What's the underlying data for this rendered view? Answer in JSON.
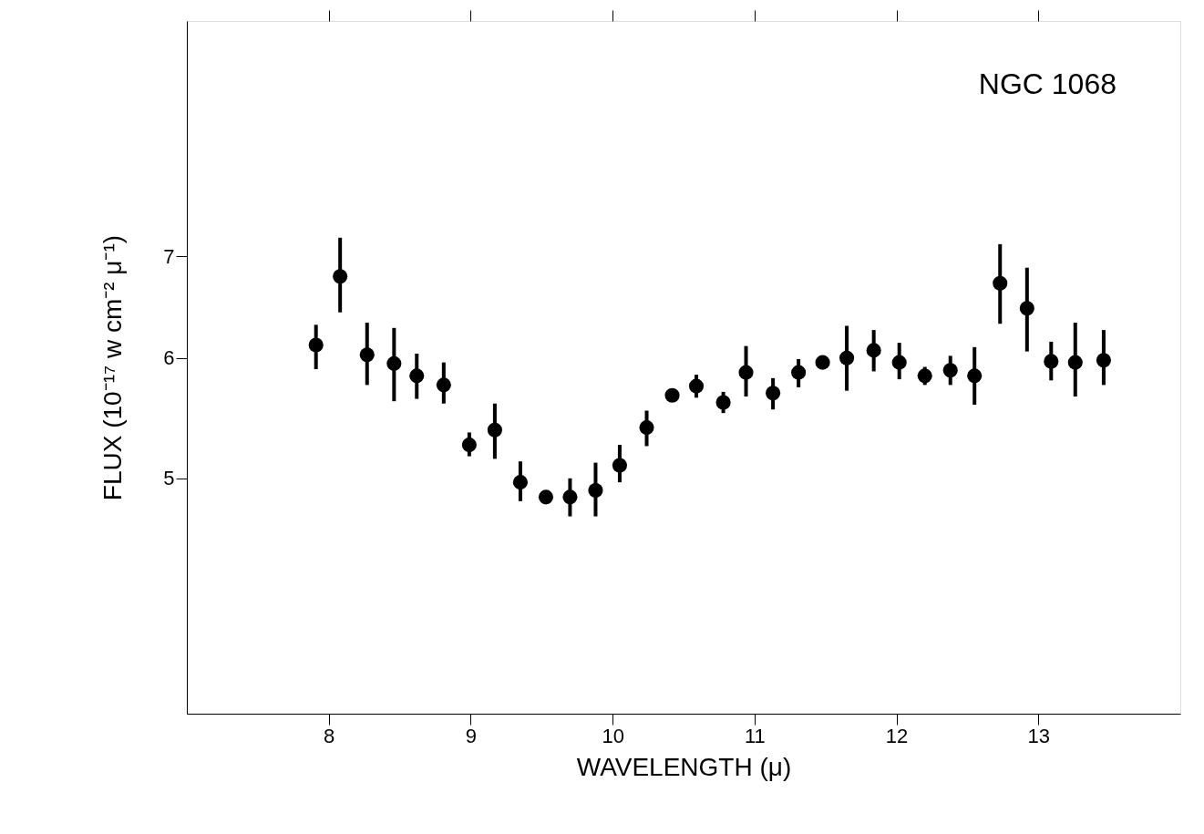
{
  "chart_data": {
    "type": "scatter",
    "xlabel": "WAVELENGTH (μ)",
    "ylabel": "FLUX (10⁻¹⁷ w cm⁻² μ⁻¹)",
    "annotations": [
      "NGC 1068"
    ],
    "x": [
      7.91,
      8.08,
      8.27,
      8.46,
      8.62,
      8.81,
      8.99,
      9.17,
      9.35,
      9.53,
      9.7,
      9.88,
      10.05,
      10.24,
      10.42,
      10.59,
      10.78,
      10.94,
      11.13,
      11.31,
      11.48,
      11.65,
      11.84,
      12.02,
      12.2,
      12.38,
      12.55,
      12.73,
      12.92,
      13.09,
      13.26,
      13.46
    ],
    "series": [
      {
        "color": "#000000",
        "values": [
          6.12,
          6.79,
          6.03,
          5.95,
          5.84,
          5.76,
          5.26,
          5.38,
          4.97,
          4.86,
          4.86,
          4.91,
          5.1,
          5.4,
          5.67,
          5.75,
          5.61,
          5.87,
          5.69,
          5.87,
          5.96,
          6.0,
          6.07,
          5.96,
          5.84,
          5.89,
          5.84,
          6.72,
          6.47,
          5.97,
          5.96,
          5.98
        ],
        "errors": [
          [
            5.9,
            6.31
          ],
          [
            6.43,
            7.2
          ],
          [
            5.76,
            6.33
          ],
          [
            5.62,
            6.28
          ],
          [
            5.64,
            6.04
          ],
          [
            5.6,
            5.96
          ],
          [
            5.17,
            5.36
          ],
          [
            5.15,
            5.6
          ],
          [
            4.83,
            5.13
          ],
          null,
          [
            4.72,
            5.0
          ],
          [
            4.72,
            5.12
          ],
          [
            4.97,
            5.26
          ],
          [
            5.25,
            5.54
          ],
          null,
          [
            5.65,
            5.85
          ],
          [
            5.52,
            5.7
          ],
          [
            5.66,
            6.11
          ],
          [
            5.55,
            5.82
          ],
          [
            5.74,
            5.99
          ],
          null,
          [
            5.71,
            6.3
          ],
          [
            5.88,
            6.26
          ],
          [
            5.81,
            6.14
          ],
          [
            5.76,
            5.92
          ],
          [
            5.76,
            6.02
          ],
          [
            5.59,
            6.1
          ],
          [
            6.32,
            7.13
          ],
          [
            6.06,
            6.88
          ],
          [
            5.8,
            6.15
          ],
          [
            5.66,
            6.33
          ],
          [
            5.76,
            6.26
          ]
        ]
      }
    ],
    "xlim": [
      7,
      14
    ],
    "xticks": [
      8,
      9,
      10,
      11,
      12,
      13
    ],
    "ylim": [
      3.5,
      10
    ],
    "yticks": [
      5,
      6,
      7
    ],
    "log": true,
    "grid": false,
    "marker": "circle"
  }
}
